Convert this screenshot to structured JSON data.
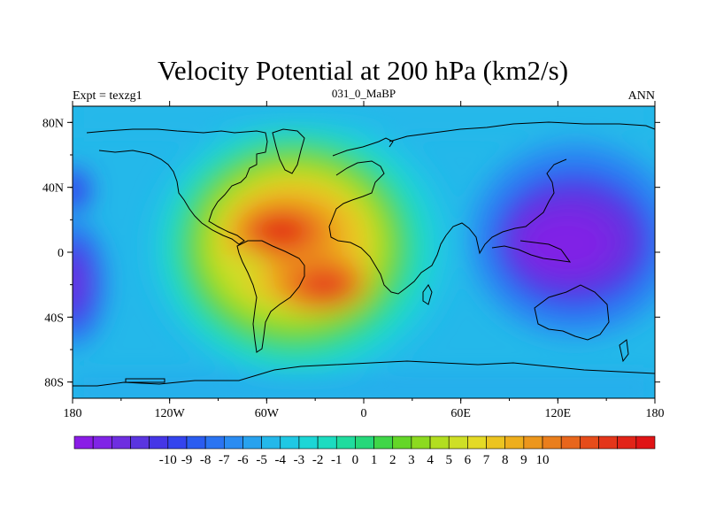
{
  "title": "Velocity Potential at 200 hPa (km2/s)",
  "subtitle_left": "Expt = texzg1",
  "subtitle_center": "031_0_MaBP",
  "subtitle_right": "ANN",
  "lat_labels": [
    "80N",
    "40N",
    "0",
    "40S",
    "80S"
  ],
  "lon_labels": [
    "180",
    "120W",
    "60W",
    "0",
    "60E",
    "120E",
    "180"
  ],
  "colorbar": {
    "labels": [
      "-10",
      "-9",
      "-8",
      "-7",
      "-6",
      "-5",
      "-4",
      "-3",
      "-2",
      "-1",
      "0",
      "1",
      "2",
      "3",
      "4",
      "5",
      "6",
      "7",
      "8",
      "9",
      "10"
    ],
    "colors": [
      "#8a1ce6",
      "#8024e6",
      "#6e2ee0",
      "#5a35e0",
      "#4536e6",
      "#3444ee",
      "#2a5cf0",
      "#2a74f2",
      "#2a8cf2",
      "#28a2ee",
      "#24b8ea",
      "#20c8e4",
      "#1cd6d6",
      "#1cdcc0",
      "#20dc9e",
      "#26d87a",
      "#40d648",
      "#64d628",
      "#8cda20",
      "#b2de20",
      "#cedf26",
      "#e4da26",
      "#ecc420",
      "#eeae1c",
      "#ec961c",
      "#ea7e1c",
      "#e8661c",
      "#e64c1a",
      "#e4361a",
      "#e22418",
      "#e01416"
    ]
  },
  "chart_data": {
    "type": "heatmap",
    "title": "Velocity Potential at 200 hPa (km2/s)",
    "variable": "Velocity Potential",
    "level": "200 hPa",
    "units": "km2/s",
    "xlim": [
      -180,
      180
    ],
    "ylim": [
      -90,
      90
    ],
    "contour_range": [
      -10,
      10
    ],
    "centers": [
      {
        "lon": -53,
        "lat": 15,
        "value": 10
      },
      {
        "lon": -25,
        "lat": -22,
        "value": 9
      },
      {
        "lon": 145,
        "lat": 5,
        "value": -9
      },
      {
        "lon": -178,
        "lat": -20,
        "value": -6
      }
    ]
  }
}
